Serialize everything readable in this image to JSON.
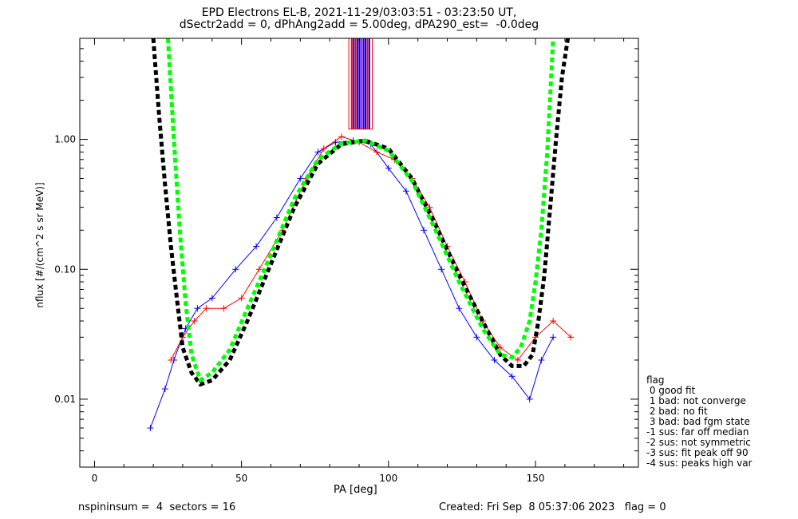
{
  "chart_data": {
    "type": "scatter",
    "title": "EPD Electrons EL-B, 2021-11-29/03:03:51 - 03:23:50 UT,",
    "subtitle": "dSectr2add = 0, dPhAng2add = 5.00deg, dPA290_est=  -0.0deg",
    "xlabel": "PA [deg]",
    "ylabel": "nflux [#/(cm^2 s sr MeV)]",
    "xlim": [
      -5,
      185
    ],
    "ylim": [
      0.003,
      6.0
    ],
    "yscale": "log",
    "x_ticks": [
      0,
      50,
      100,
      150
    ],
    "x_tick_labels": [
      "0",
      "50",
      "100",
      "150"
    ],
    "y_ticks": [
      0.01,
      0.1,
      1.0
    ],
    "y_tick_labels": [
      "0.01",
      "0.10",
      "1.00"
    ],
    "series": [
      {
        "color": "#0000ff",
        "marker": "+",
        "x": [
          19,
          24,
          27,
          31,
          35,
          40,
          48,
          55,
          62,
          70,
          76,
          82,
          88,
          94,
          100,
          106,
          112,
          118,
          124,
          130,
          136,
          142,
          148,
          152,
          156
        ],
        "y": [
          0.006,
          0.012,
          0.02,
          0.035,
          0.05,
          0.06,
          0.1,
          0.15,
          0.25,
          0.5,
          0.8,
          0.95,
          0.98,
          0.92,
          0.6,
          0.4,
          0.2,
          0.1,
          0.05,
          0.03,
          0.02,
          0.015,
          0.01,
          0.02,
          0.03
        ]
      },
      {
        "color": "#ff0000",
        "marker": "+",
        "x": [
          26,
          30,
          34,
          38,
          44,
          50,
          56,
          64,
          72,
          78,
          84,
          90,
          96,
          102,
          108,
          114,
          120,
          126,
          132,
          138,
          144,
          150,
          156,
          162
        ],
        "y": [
          0.02,
          0.03,
          0.04,
          0.05,
          0.05,
          0.06,
          0.1,
          0.2,
          0.5,
          0.85,
          1.05,
          0.95,
          0.8,
          0.7,
          0.5,
          0.3,
          0.15,
          0.08,
          0.04,
          0.025,
          0.02,
          0.03,
          0.04,
          0.03
        ]
      },
      {
        "color": "#000000",
        "marker": "none",
        "style": "dashed",
        "x": [
          20,
          22,
          24,
          26,
          28,
          30,
          33,
          36,
          40,
          46,
          52,
          60,
          68,
          76,
          84,
          92,
          100,
          108,
          116,
          124,
          132,
          138,
          142,
          146,
          149,
          151,
          153,
          155,
          157,
          159,
          161
        ],
        "y": [
          6,
          1.5,
          0.45,
          0.15,
          0.06,
          0.025,
          0.016,
          0.013,
          0.014,
          0.02,
          0.04,
          0.11,
          0.3,
          0.65,
          0.92,
          0.98,
          0.85,
          0.5,
          0.22,
          0.09,
          0.04,
          0.022,
          0.018,
          0.018,
          0.022,
          0.04,
          0.09,
          0.3,
          1.0,
          3.0,
          6
        ]
      },
      {
        "color": "#00ff00",
        "marker": "none",
        "style": "dashed",
        "x": [
          25,
          27,
          29,
          31,
          33,
          36,
          40,
          46,
          52,
          60,
          68,
          76,
          84,
          92,
          100,
          108,
          116,
          124,
          132,
          138,
          142,
          145,
          148,
          150,
          152,
          154,
          156
        ],
        "y": [
          6,
          1.0,
          0.2,
          0.055,
          0.022,
          0.014,
          0.016,
          0.024,
          0.05,
          0.13,
          0.35,
          0.7,
          0.93,
          0.98,
          0.82,
          0.48,
          0.2,
          0.08,
          0.035,
          0.022,
          0.021,
          0.025,
          0.04,
          0.08,
          0.2,
          0.8,
          6
        ]
      }
    ]
  },
  "legend": {
    "title": "flag",
    "items": [
      " 0 good fit",
      " 1 bad: not converge",
      " 2 bad: no fit",
      " 3 bad: bad fgm state",
      "-1 sus: far off median",
      "-2 sus: not symmetric",
      "-3 sus: fit peak off 90",
      "-4 sus: peaks high var"
    ]
  },
  "footer": {
    "left": "nspininsum =  4  sectors = 16",
    "right": "Created: Fri Sep  8 05:37:06 2023   flag = 0"
  }
}
